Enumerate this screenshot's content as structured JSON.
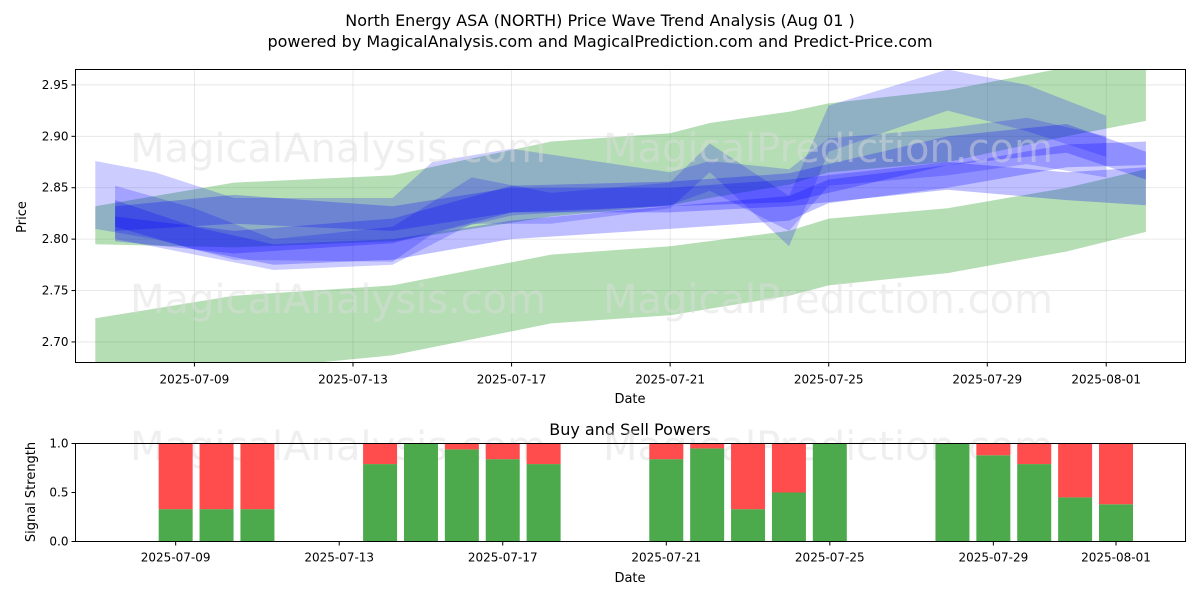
{
  "header": {
    "title": "North Energy ASA (NORTH) Price Wave Trend Analysis (Aug 01 )",
    "subtitle": "powered by MagicalAnalysis.com and MagicalPrediction.com and Predict-Price.com"
  },
  "watermarks": [
    "MagicalAnalysis.com",
    "MagicalPrediction.com"
  ],
  "chart_data": [
    {
      "type": "area",
      "name": "price-wave-chart",
      "title": "",
      "xlabel": "Date",
      "ylabel": "Price",
      "xlim": [
        "2025-07-06",
        "2025-08-03"
      ],
      "ylim": [
        2.68,
        2.965
      ],
      "x_ticks": [
        "2025-07-09",
        "2025-07-13",
        "2025-07-17",
        "2025-07-21",
        "2025-07-25",
        "2025-07-29",
        "2025-08-01"
      ],
      "y_ticks": [
        2.7,
        2.75,
        2.8,
        2.85,
        2.9,
        2.95
      ],
      "grid": true,
      "bands": [
        {
          "name": "green-upper-band",
          "color": "#2ca02c",
          "opacity": 0.35,
          "x": [
            "2025-07-06.5",
            "2025-07-10",
            "2025-07-14",
            "2025-07-18",
            "2025-07-21",
            "2025-07-22",
            "2025-07-24",
            "2025-07-25",
            "2025-07-28",
            "2025-07-31",
            "2025-08-02"
          ],
          "upper": [
            2.832,
            2.855,
            2.862,
            2.895,
            2.903,
            2.913,
            2.924,
            2.932,
            2.945,
            2.967,
            2.972
          ],
          "lower": [
            2.795,
            2.792,
            2.798,
            2.822,
            2.833,
            2.84,
            2.853,
            2.865,
            2.875,
            2.9,
            2.915
          ]
        },
        {
          "name": "green-lower-band",
          "color": "#2ca02c",
          "opacity": 0.35,
          "x": [
            "2025-07-06.5",
            "2025-07-10",
            "2025-07-14",
            "2025-07-18",
            "2025-07-21",
            "2025-07-24",
            "2025-07-25",
            "2025-07-28",
            "2025-07-31",
            "2025-08-02"
          ],
          "upper": [
            2.723,
            2.745,
            2.755,
            2.785,
            2.793,
            2.808,
            2.82,
            2.83,
            2.85,
            2.868
          ],
          "lower": [
            2.665,
            2.672,
            2.687,
            2.718,
            2.726,
            2.745,
            2.755,
            2.767,
            2.788,
            2.807
          ]
        },
        {
          "name": "blue-wave-1",
          "color": "#0000ff",
          "opacity": 0.2,
          "x": [
            "2025-07-06.5",
            "2025-07-08",
            "2025-07-10",
            "2025-07-14",
            "2025-07-15",
            "2025-07-17",
            "2025-07-21",
            "2025-07-22",
            "2025-07-24",
            "2025-07-25",
            "2025-07-28",
            "2025-07-30",
            "2025-08-01"
          ],
          "upper": [
            2.876,
            2.865,
            2.84,
            2.84,
            2.875,
            2.888,
            2.865,
            2.876,
            2.868,
            2.898,
            2.908,
            2.918,
            2.9
          ],
          "lower": [
            2.81,
            2.8,
            2.78,
            2.778,
            2.805,
            2.823,
            2.833,
            2.847,
            2.808,
            2.852,
            2.862,
            2.873,
            2.86
          ]
        },
        {
          "name": "blue-wave-2",
          "color": "#0000ff",
          "opacity": 0.2,
          "x": [
            "2025-07-07",
            "2025-07-09",
            "2025-07-11",
            "2025-07-14",
            "2025-07-16",
            "2025-07-18",
            "2025-07-21",
            "2025-07-22",
            "2025-07-24",
            "2025-07-25",
            "2025-07-28",
            "2025-07-30",
            "2025-08-01"
          ],
          "upper": [
            2.852,
            2.83,
            2.8,
            2.812,
            2.86,
            2.845,
            2.855,
            2.893,
            2.842,
            2.93,
            2.965,
            2.95,
            2.92
          ],
          "lower": [
            2.8,
            2.785,
            2.77,
            2.775,
            2.815,
            2.815,
            2.83,
            2.865,
            2.793,
            2.885,
            2.925,
            2.905,
            2.88
          ]
        },
        {
          "name": "blue-wave-3",
          "color": "#0000ff",
          "opacity": 0.25,
          "x": [
            "2025-07-07",
            "2025-07-09",
            "2025-07-11",
            "2025-07-14",
            "2025-07-17",
            "2025-07-21",
            "2025-07-24",
            "2025-07-25",
            "2025-07-28",
            "2025-07-31",
            "2025-08-02"
          ],
          "upper": [
            2.838,
            2.812,
            2.795,
            2.8,
            2.818,
            2.832,
            2.842,
            2.858,
            2.872,
            2.892,
            2.895
          ],
          "lower": [
            2.812,
            2.79,
            2.775,
            2.78,
            2.8,
            2.81,
            2.818,
            2.835,
            2.85,
            2.87,
            2.872
          ]
        },
        {
          "name": "blue-wave-4",
          "color": "#0000ff",
          "opacity": 0.25,
          "x": [
            "2025-07-07",
            "2025-07-10",
            "2025-07-14",
            "2025-07-17",
            "2025-07-21",
            "2025-07-24",
            "2025-07-28",
            "2025-07-31",
            "2025-08-02"
          ],
          "upper": [
            2.822,
            2.808,
            2.82,
            2.852,
            2.856,
            2.864,
            2.9,
            2.912,
            2.885
          ],
          "lower": [
            2.798,
            2.786,
            2.796,
            2.826,
            2.832,
            2.836,
            2.872,
            2.884,
            2.858
          ]
        },
        {
          "name": "blue-wave-5",
          "color": "#0000ff",
          "opacity": 0.25,
          "x": [
            "2025-07-07",
            "2025-07-10",
            "2025-07-14",
            "2025-07-17",
            "2025-07-21",
            "2025-07-24",
            "2025-07-28",
            "2025-07-31",
            "2025-08-02"
          ],
          "upper": [
            2.832,
            2.843,
            2.832,
            2.85,
            2.85,
            2.858,
            2.875,
            2.865,
            2.87
          ],
          "lower": [
            2.808,
            2.815,
            2.808,
            2.826,
            2.826,
            2.832,
            2.848,
            2.838,
            2.833
          ]
        }
      ]
    },
    {
      "type": "bar",
      "name": "signal-strength-chart",
      "title": "Buy and Sell Powers",
      "xlabel": "Date",
      "ylabel": "Signal Strength",
      "ylim": [
        0,
        1.0
      ],
      "y_ticks": [
        0.0,
        0.5,
        1.0
      ],
      "x_ticks": [
        "2025-07-09",
        "2025-07-13",
        "2025-07-17",
        "2025-07-21",
        "2025-07-25",
        "2025-07-29",
        "2025-08-01"
      ],
      "series_colors": {
        "buy": "#4caa4c",
        "sell": "#ff4c4c"
      },
      "dates": [
        "2025-07-09",
        "2025-07-10",
        "2025-07-11",
        "2025-07-14",
        "2025-07-15",
        "2025-07-16",
        "2025-07-17",
        "2025-07-18",
        "2025-07-21",
        "2025-07-22",
        "2025-07-23",
        "2025-07-24",
        "2025-07-25",
        "2025-07-28",
        "2025-07-29",
        "2025-07-30",
        "2025-07-31",
        "2025-08-01"
      ],
      "buy": [
        0.33,
        0.33,
        0.33,
        0.79,
        1.0,
        0.94,
        0.84,
        0.79,
        0.84,
        0.95,
        0.33,
        0.5,
        1.0,
        1.0,
        0.88,
        0.79,
        0.45,
        0.38
      ],
      "sell": [
        0.67,
        0.67,
        0.67,
        0.21,
        0.0,
        0.06,
        0.16,
        0.21,
        0.16,
        0.05,
        0.67,
        0.5,
        0.0,
        0.0,
        0.12,
        0.21,
        0.55,
        0.62
      ]
    }
  ]
}
